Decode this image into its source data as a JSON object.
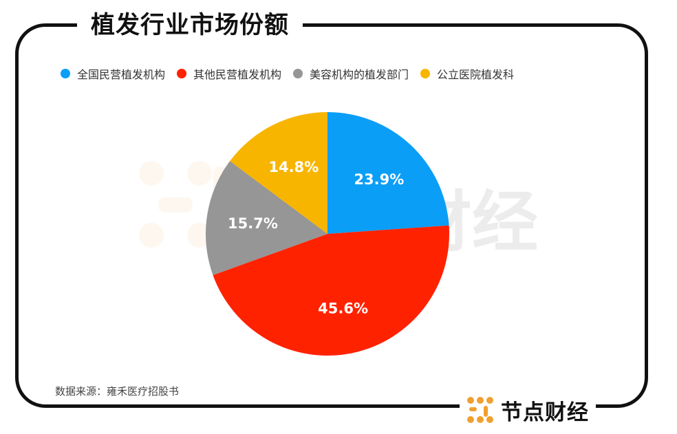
{
  "title": "植发行业市场份额",
  "source": "数据来源：雍禾医疗招股书",
  "brand": {
    "name": "节点财经",
    "watermark": "财经"
  },
  "colors": {
    "blue": "#0A9EF7",
    "red": "#FF2200",
    "gray": "#969696",
    "yellow": "#F8B500"
  },
  "chart_data": {
    "type": "pie",
    "categories": [
      "全国民营植发机构",
      "其他民营植发机构",
      "美容机构的植发部门",
      "公立医院植发科"
    ],
    "values": [
      23.9,
      45.6,
      15.7,
      14.8
    ],
    "labels": [
      "23.9%",
      "45.6%",
      "15.7%",
      "14.8%"
    ],
    "colors": [
      "#0A9EF7",
      "#FF2200",
      "#969696",
      "#F8B500"
    ],
    "legend": "top-left"
  }
}
